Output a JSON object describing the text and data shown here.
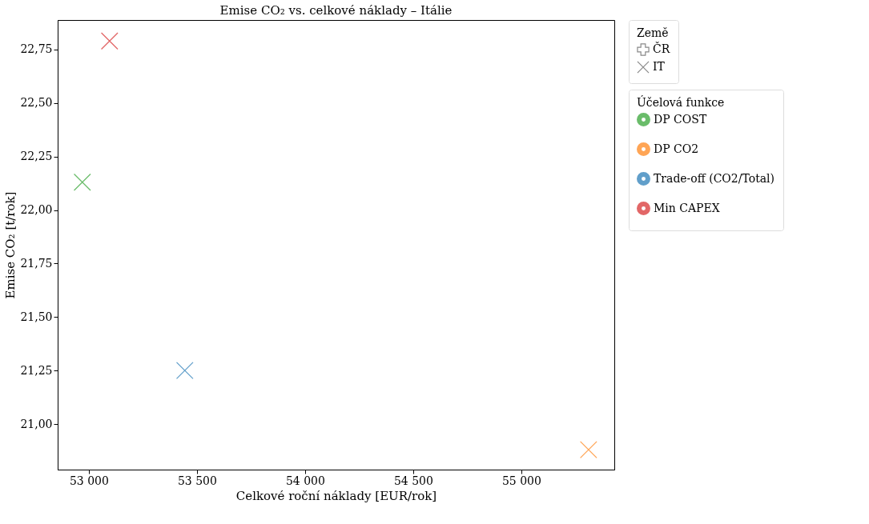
{
  "chart_data": {
    "type": "scatter",
    "title": "Emise CO₂ vs. celkové náklady – Itálie",
    "xlabel": "Celkové roční náklady [EUR/rok]",
    "ylabel": "Emise CO₂ [t/rok]",
    "legend_title": "Účelová funkce",
    "legend": "right",
    "marker": "cross",
    "grid": false,
    "xlim": [
      52856,
      55430
    ],
    "ylim": [
      20.787,
      22.888
    ],
    "xticks": [
      {
        "value": 53000,
        "label": "53 000"
      },
      {
        "value": 53500,
        "label": "53 500"
      },
      {
        "value": 54000,
        "label": "54 000"
      },
      {
        "value": 54500,
        "label": "54 500"
      },
      {
        "value": 55000,
        "label": "55 000"
      }
    ],
    "yticks": [
      {
        "value": 21.0,
        "label": "21,00"
      },
      {
        "value": 21.25,
        "label": "21,25"
      },
      {
        "value": 21.5,
        "label": "21,50"
      },
      {
        "value": 21.75,
        "label": "21,75"
      },
      {
        "value": 22.0,
        "label": "22,00"
      },
      {
        "value": 22.25,
        "label": "22,25"
      },
      {
        "value": 22.5,
        "label": "22,50"
      },
      {
        "value": 22.75,
        "label": "22,75"
      }
    ],
    "annotations": [
      "Země"
    ],
    "series": [
      {
        "name": "DP COST",
        "color": "#2ca02c",
        "x": [
          52970
        ],
        "values": [
          22.13
        ]
      },
      {
        "name": "DP CO2",
        "color": "#ff7f0e",
        "x": [
          55311
        ],
        "values": [
          20.88
        ]
      },
      {
        "name": "Trade-off (CO2/Total)",
        "color": "#1f77b4",
        "x": [
          53444
        ],
        "values": [
          21.25
        ]
      },
      {
        "name": "Min CAPEX",
        "color": "#d62728",
        "x": [
          53096
        ],
        "values": [
          22.79
        ]
      },
      {
        "name": "ČR",
        "color": "#808080",
        "marker": "plus"
      },
      {
        "name": "IT",
        "color": "#808080",
        "marker": "cross"
      }
    ]
  }
}
